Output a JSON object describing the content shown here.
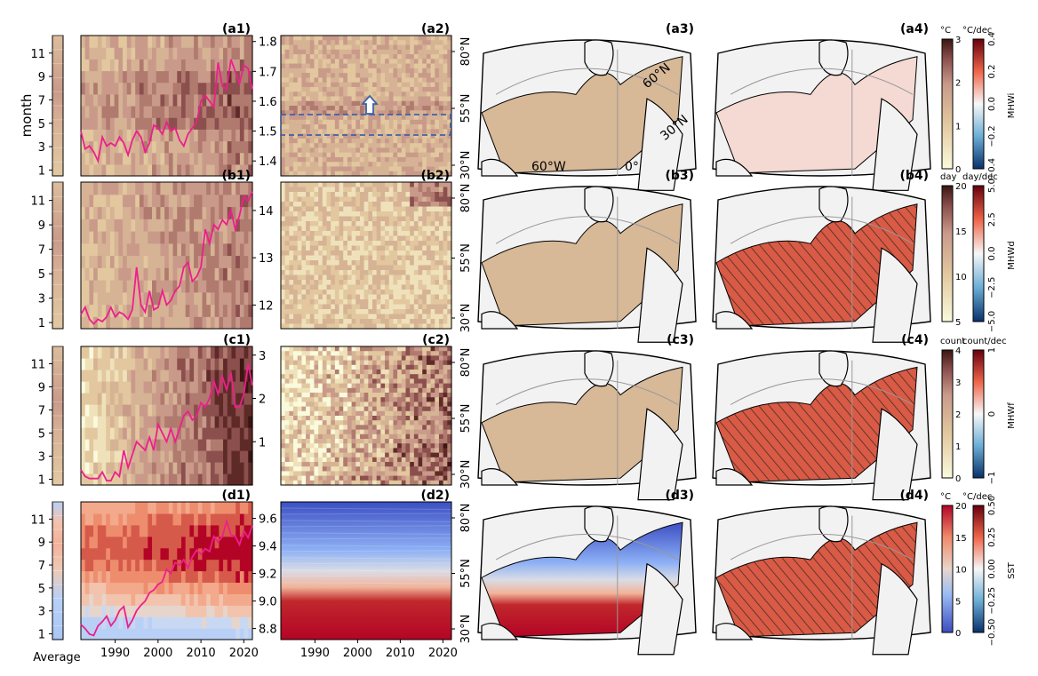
{
  "chart_data": {
    "type": "heatmap",
    "row_labels": [
      "a",
      "b",
      "c",
      "d"
    ],
    "month_axis": {
      "label": "month",
      "ticks": [
        "1",
        "3",
        "5",
        "7",
        "9",
        "11"
      ]
    },
    "average_label": "Average",
    "time_axis": {
      "ticks": [
        "1990",
        "2000",
        "2010",
        "2020"
      ],
      "range": [
        1982,
        2022
      ]
    },
    "lat_axis": {
      "ticks": [
        "30°N",
        "55°N",
        "80°N"
      ]
    },
    "rows": [
      {
        "id": "a",
        "variable": "MHWi",
        "panels": {
          "p1": "(a1)",
          "p2": "(a2)",
          "p3": "(a3)",
          "p4": "(a4)"
        },
        "right_axis_ticks": [
          "1.4",
          "1.5",
          "1.6",
          "1.7",
          "1.8"
        ],
        "right_axis_range": [
          1.35,
          1.82
        ],
        "annual_mean_series": [
          1.5,
          1.44,
          1.45,
          1.43,
          1.4,
          1.48,
          1.45,
          1.46,
          1.45,
          1.48,
          1.46,
          1.42,
          1.47,
          1.5,
          1.48,
          1.43,
          1.46,
          1.52,
          1.51,
          1.49,
          1.53,
          1.5,
          1.51,
          1.47,
          1.45,
          1.49,
          1.51,
          1.53,
          1.6,
          1.62,
          1.6,
          1.58,
          1.73,
          1.65,
          1.64,
          1.74,
          1.7,
          1.66,
          1.72,
          1.71,
          1.64
        ],
        "map_labels": [
          "60°W",
          "0°",
          "30°N",
          "60°N"
        ],
        "colorbar_mean": {
          "unit": "°C",
          "ticks": [
            "0",
            "1",
            "2",
            "3"
          ]
        },
        "colorbar_trend": {
          "unit": "°C/dec",
          "ticks": [
            "−0.4",
            "−0.2",
            "0.0",
            "0.2",
            "0.4"
          ]
        }
      },
      {
        "id": "b",
        "variable": "MHWd",
        "panels": {
          "p1": "(b1)",
          "p2": "(b2)",
          "p3": "(b3)",
          "p4": "(b4)"
        },
        "right_axis_ticks": [
          "12",
          "13",
          "14"
        ],
        "right_axis_range": [
          11.5,
          14.6
        ],
        "annual_mean_series": [
          11.8,
          11.95,
          11.7,
          11.6,
          11.7,
          11.65,
          11.75,
          11.95,
          11.75,
          11.85,
          11.8,
          11.7,
          11.9,
          12.8,
          12.0,
          11.85,
          12.3,
          11.9,
          11.95,
          12.3,
          12.0,
          12.1,
          12.3,
          12.4,
          12.8,
          12.9,
          12.5,
          12.6,
          12.8,
          13.6,
          13.3,
          13.7,
          13.6,
          13.8,
          13.7,
          14.0,
          13.6,
          13.9,
          14.3,
          14.2,
          14.4
        ],
        "colorbar_mean": {
          "unit": "day",
          "ticks": [
            "5",
            "10",
            "15",
            "20"
          ]
        },
        "colorbar_trend": {
          "unit": "day/dec",
          "ticks": [
            "−5.0",
            "−2.5",
            "0.0",
            "2.5",
            "5.0"
          ]
        }
      },
      {
        "id": "c",
        "variable": "MHWf",
        "panels": {
          "p1": "(c1)",
          "p2": "(c2)",
          "p3": "(c3)",
          "p4": "(c4)"
        },
        "right_axis_ticks": [
          "1",
          "2",
          "3"
        ],
        "right_axis_range": [
          0,
          3.2
        ],
        "annual_mean_series": [
          0.35,
          0.2,
          0.15,
          0.15,
          0.15,
          0.3,
          0.1,
          0.1,
          0.3,
          0.2,
          0.8,
          0.4,
          0.7,
          1.0,
          0.9,
          0.8,
          1.1,
          0.8,
          1.4,
          1.2,
          1.0,
          1.3,
          1.0,
          1.3,
          1.6,
          1.7,
          1.5,
          1.6,
          1.9,
          1.8,
          2.0,
          2.4,
          2.1,
          2.5,
          2.2,
          2.6,
          1.8,
          1.8,
          2.1,
          2.8,
          2.3
        ],
        "colorbar_mean": {
          "unit": "count",
          "ticks": [
            "0",
            "1",
            "2",
            "3",
            "4"
          ]
        },
        "colorbar_trend": {
          "unit": "count/dec",
          "ticks": [
            "−1",
            "0",
            "1"
          ]
        }
      },
      {
        "id": "d",
        "variable": "SST",
        "panels": {
          "p1": "(d1)",
          "p2": "(d2)",
          "p3": "(d3)",
          "p4": "(d4)"
        },
        "right_axis_ticks": [
          "8.8",
          "9.0",
          "9.2",
          "9.4",
          "9.6"
        ],
        "right_axis_range": [
          8.72,
          9.72
        ],
        "annual_mean_series": [
          8.83,
          8.8,
          8.76,
          8.75,
          8.82,
          8.85,
          8.89,
          8.82,
          8.86,
          8.93,
          8.96,
          8.81,
          8.86,
          8.93,
          8.97,
          9.0,
          9.06,
          9.08,
          9.12,
          9.14,
          9.23,
          9.2,
          9.28,
          9.26,
          9.3,
          9.24,
          9.32,
          9.37,
          9.34,
          9.38,
          9.36,
          9.47,
          9.43,
          9.47,
          9.58,
          9.48,
          9.47,
          9.41,
          9.51,
          9.46,
          9.55
        ],
        "colorbar_mean": {
          "unit": "°C",
          "ticks": [
            "0",
            "5",
            "10",
            "15",
            "20"
          ]
        },
        "colorbar_trend": {
          "unit": "°C/dec",
          "ticks": [
            "−0.50",
            "−0.25",
            "0.00",
            "0.25",
            "0.50"
          ]
        }
      }
    ]
  },
  "colors": {
    "line": "#ee1f8c",
    "box": "#3f62a8",
    "heat_low": "#f4f0d8",
    "heat_mid": "#c99d8a",
    "heat_high": "#3b1512",
    "cool": "#2b59c3",
    "warm": "#b40426"
  }
}
